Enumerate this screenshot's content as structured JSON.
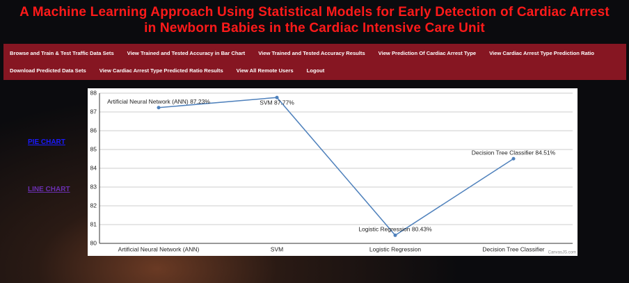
{
  "header": {
    "title": [
      "A Machine Learning Approach Using Statistical Models for Early Detection of Cardiac Arrest",
      "in Newborn Babies in the Cardiac Intensive Care Unit"
    ]
  },
  "nav": [
    [
      "Browse and Train & Test Traffic Data Sets",
      "View Trained and Tested Accuracy in Bar Chart",
      "View Trained and Tested Accuracy Results",
      "View Prediction Of Cardiac Arrest Type",
      "View Cardiac Arrest Type Prediction Ratio"
    ],
    [
      "Download Predicted Data Sets",
      "View Cardiac Arrest Type Predicted Ratio Results",
      "View All Remote Users",
      "Logout"
    ]
  ],
  "side_links": [
    "PIE CHART",
    "LINE CHART"
  ],
  "chart_data": {
    "type": "line",
    "categories": [
      "Artificial Neural Network (ANN)",
      "SVM",
      "Logistic Regression",
      "Decision Tree Classifier"
    ],
    "values": [
      87.23,
      87.77,
      80.43,
      84.51
    ],
    "value_labels": [
      "Artificial Neural Network (ANN) 87.23%",
      "SVM 87.77%",
      "Logistic Regression 80.43%",
      "Decision Tree Classifier 84.51%"
    ],
    "color": "#4f81bc",
    "ylim": [
      80,
      88
    ],
    "yticks": [
      80,
      81,
      82,
      83,
      84,
      85,
      86,
      87,
      88
    ],
    "grid": true,
    "credit": "CanvasJS.com"
  }
}
